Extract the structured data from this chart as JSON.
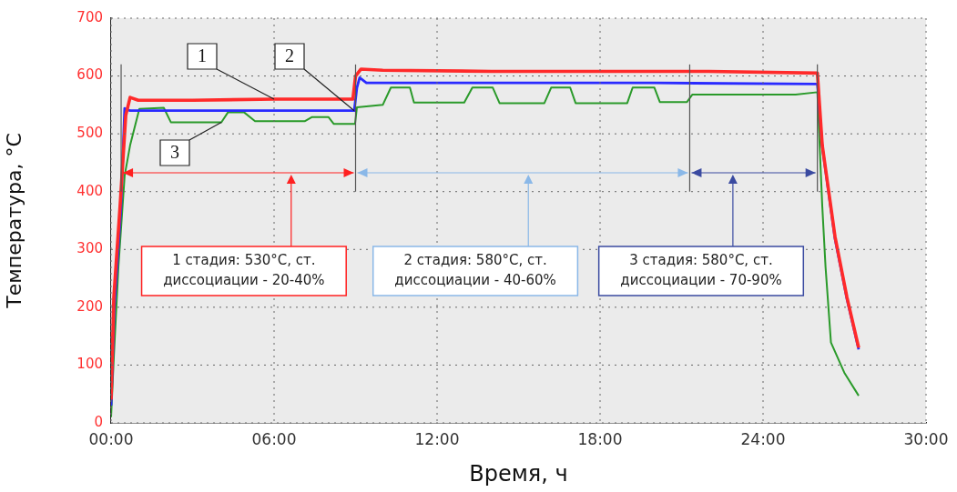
{
  "chart_data": {
    "type": "line",
    "xlabel": "Время, ч",
    "ylabel": "Температура, °C",
    "xlim": [
      0,
      30
    ],
    "xticks": [
      {
        "value": 0,
        "label": "00:00"
      },
      {
        "value": 6,
        "label": "06:00"
      },
      {
        "value": 12,
        "label": "12:00"
      },
      {
        "value": 18,
        "label": "18:00"
      },
      {
        "value": 24,
        "label": "24:00"
      },
      {
        "value": 30,
        "label": "30:00"
      }
    ],
    "ylim": [
      0,
      700
    ],
    "yticks": [
      0,
      100,
      200,
      300,
      400,
      500,
      600,
      700
    ],
    "grid": true,
    "legend": false,
    "marker": "none",
    "line_style": "solid",
    "series": [
      {
        "name": "1",
        "color": "#ff2a2a",
        "x": [
          0,
          0.1,
          0.33,
          0.54,
          0.7,
          1.0,
          3.0,
          6.0,
          8.9,
          9.0,
          9.2,
          10,
          14,
          18,
          22,
          26.0,
          26.18,
          26.65,
          27.09,
          27.52
        ],
        "values": [
          40,
          217,
          375,
          532,
          563,
          558,
          558,
          560,
          560,
          600,
          612,
          610,
          608,
          608,
          608,
          605,
          480,
          322,
          217,
          130
        ]
      },
      {
        "name": "2",
        "color": "#2a2aff",
        "x": [
          0,
          0.12,
          0.36,
          0.5,
          0.7,
          3.0,
          6.0,
          8.95,
          9.05,
          9.15,
          9.4,
          14,
          20,
          26.0,
          26.18,
          26.65,
          27.09,
          27.52
        ],
        "values": [
          30,
          200,
          370,
          544,
          540,
          540,
          540,
          540,
          580,
          597,
          588,
          588,
          588,
          586,
          478,
          318,
          214,
          127
        ]
      },
      {
        "name": "3",
        "color": "#2a9a2a",
        "x": [
          0,
          0.1,
          0.27,
          0.5,
          0.7,
          1.04,
          1.94,
          2.2,
          4.06,
          4.3,
          4.9,
          5.3,
          7.14,
          7.4,
          8.0,
          8.2,
          8.98,
          9.05,
          10.0,
          10.3,
          11.0,
          11.15,
          13.0,
          13.3,
          14.05,
          14.3,
          15.95,
          16.2,
          16.9,
          17.1,
          19.0,
          19.2,
          20.0,
          20.2,
          21.2,
          21.4,
          25.2,
          26.0,
          26.18,
          26.3,
          26.5,
          26.99,
          27.52
        ],
        "values": [
          10,
          113,
          270,
          428,
          480,
          543,
          545,
          520,
          520,
          537,
          537,
          522,
          522,
          529,
          529,
          517,
          517,
          546,
          550,
          580,
          580,
          554,
          554,
          580,
          580,
          553,
          553,
          580,
          580,
          553,
          553,
          580,
          580,
          555,
          555,
          568,
          568,
          572,
          375,
          270,
          139,
          87,
          47
        ]
      }
    ],
    "ref_lines": [
      {
        "axis": "x",
        "value": 0.37,
        "color": "#555555"
      },
      {
        "axis": "x",
        "value": 9.0,
        "color": "#555555"
      },
      {
        "axis": "x",
        "value": 21.3,
        "color": "#555555"
      },
      {
        "axis": "x",
        "value": 26.0,
        "color": "#555555"
      }
    ],
    "annotations": [
      "1 стадия: 530°C, ст. диссоциации - 20-40%",
      "2 стадия: 580°C, ст. диссоциации - 40-60%",
      "3 стадия: 580°C, ст. диссоциации - 70-90%"
    ]
  }
}
